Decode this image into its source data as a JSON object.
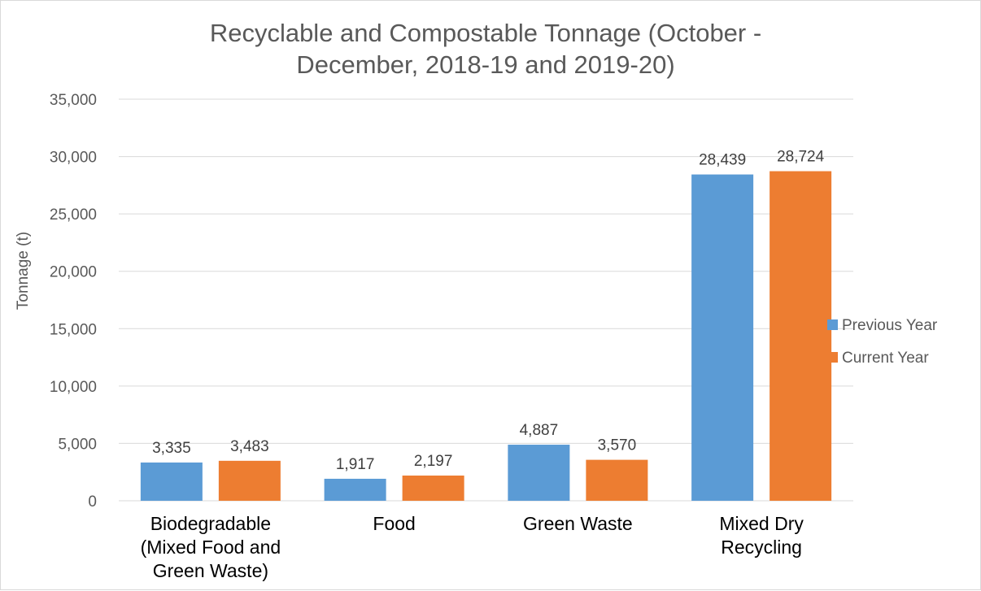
{
  "chart_data": {
    "type": "bar",
    "title_lines": [
      "Recyclable and Compostable Tonnage (October -",
      "December, 2018-19 and 2019-20)"
    ],
    "ylabel": "Tonnage (t)",
    "xlabel": "",
    "ylim": [
      0,
      35000
    ],
    "ytick_step": 5000,
    "ytick_labels": [
      "0",
      "5,000",
      "10,000",
      "15,000",
      "20,000",
      "25,000",
      "30,000",
      "35,000"
    ],
    "grid": true,
    "legend_position": "right",
    "categories": [
      [
        "Biodegradable",
        "(Mixed Food and",
        "Green Waste)"
      ],
      [
        "Food"
      ],
      [
        "Green Waste"
      ],
      [
        "Mixed Dry",
        "Recycling"
      ]
    ],
    "series": [
      {
        "name": "Previous Year",
        "color": "#5b9bd5",
        "values": [
          3335,
          1917,
          4887,
          28439
        ],
        "labels": [
          "3,335",
          "1,917",
          "4,887",
          "28,439"
        ]
      },
      {
        "name": "Current Year",
        "color": "#ed7d31",
        "values": [
          3483,
          2197,
          3570,
          28724
        ],
        "labels": [
          "3,483",
          "2,197",
          "3,570",
          "28,724"
        ]
      }
    ]
  }
}
